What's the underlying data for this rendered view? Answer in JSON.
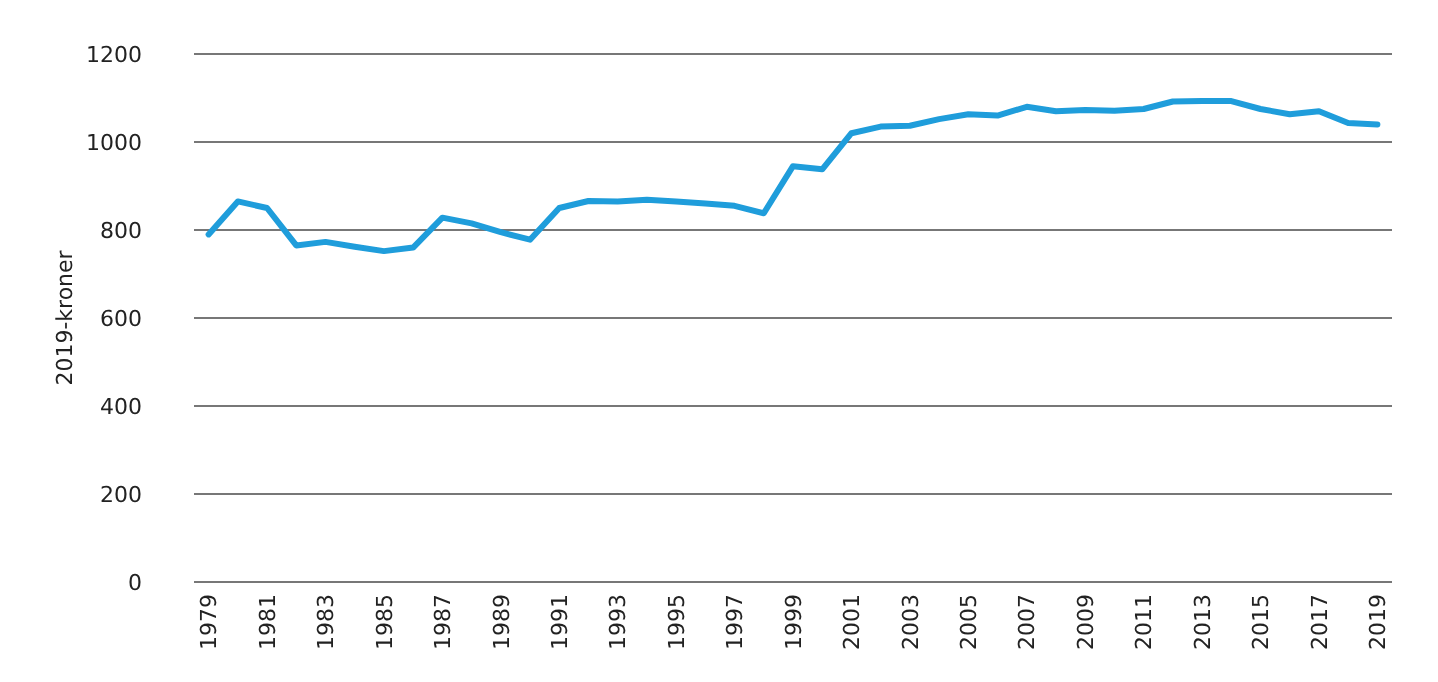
{
  "chart_data": {
    "type": "line",
    "ylabel": "2019-kroner",
    "x": [
      1979,
      1980,
      1981,
      1982,
      1983,
      1984,
      1985,
      1986,
      1987,
      1988,
      1989,
      1990,
      1991,
      1992,
      1993,
      1994,
      1995,
      1996,
      1997,
      1998,
      1999,
      2000,
      2001,
      2002,
      2003,
      2004,
      2005,
      2006,
      2007,
      2008,
      2009,
      2010,
      2011,
      2012,
      2013,
      2014,
      2015,
      2016,
      2017,
      2018,
      2019
    ],
    "series": [
      {
        "color": "#1f9ddb",
        "values": [
          790,
          865,
          850,
          765,
          773,
          762,
          752,
          760,
          828,
          815,
          795,
          778,
          850,
          866,
          865,
          869,
          865,
          860,
          855,
          838,
          945,
          938,
          1020,
          1035,
          1037,
          1052,
          1063,
          1060,
          1080,
          1070,
          1073,
          1071,
          1075,
          1092,
          1093,
          1093,
          1075,
          1063,
          1070,
          1043,
          1040
        ]
      }
    ],
    "xlim": [
      1978.5,
      2019.5
    ],
    "xticks": [
      1979,
      1981,
      1983,
      1985,
      1987,
      1989,
      1991,
      1993,
      1995,
      1997,
      1999,
      2001,
      2003,
      2005,
      2007,
      2009,
      2011,
      2013,
      2015,
      2017,
      2019
    ],
    "ylim": [
      0,
      1200
    ],
    "yticks": [
      0,
      200,
      400,
      600,
      800,
      1000,
      1200
    ],
    "grid": "y",
    "marker": "none",
    "line_style": "solid"
  }
}
